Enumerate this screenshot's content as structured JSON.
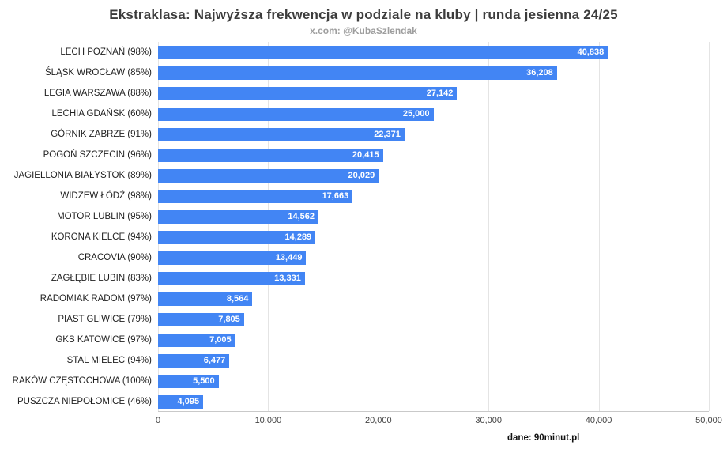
{
  "chart_data": {
    "type": "bar",
    "orientation": "horizontal",
    "title": "Ekstraklasa: Najwyższa frekwencja w podziale na kluby | runda jesienna 24/25",
    "subtitle": "x.com: @KubaSzlendak",
    "source": "dane: 90minut.pl",
    "categories": [
      "LECH POZNAŃ (98%)",
      "ŚLĄSK WROCŁAW (85%)",
      "LEGIA WARSZAWA (88%)",
      "LECHIA GDAŃSK (60%)",
      "GÓRNIK ZABRZE (91%)",
      "POGOŃ SZCZECIN (96%)",
      "JAGIELLONIA BIAŁYSTOK (89%)",
      "WIDZEW ŁÓDŹ (98%)",
      "MOTOR LUBLIN (95%)",
      "KORONA KIELCE (94%)",
      "CRACOVIA (90%)",
      "ZAGŁĘBIE LUBIN (83%)",
      "RADOMIAK RADOM (97%)",
      "PIAST GLIWICE (79%)",
      "GKS KATOWICE (97%)",
      "STAL MIELEC (94%)",
      "RAKÓW CZĘSTOCHOWA (100%)",
      "PUSZCZA NIEPOŁOMICE (46%)"
    ],
    "values": [
      40838,
      36208,
      27142,
      25000,
      22371,
      20415,
      20029,
      17663,
      14562,
      14289,
      13449,
      13331,
      8564,
      7805,
      7005,
      6477,
      5500,
      4095
    ],
    "value_labels": [
      "40,838",
      "36,208",
      "27,142",
      "25,000",
      "22,371",
      "20,415",
      "20,029",
      "17,663",
      "14,562",
      "14,289",
      "13,449",
      "13,331",
      "8,564",
      "7,805",
      "7,005",
      "6,477",
      "5,500",
      "4,095"
    ],
    "xlim": [
      0,
      50000
    ],
    "x_ticks": [
      "0",
      "10,000",
      "20,000",
      "30,000",
      "40,000",
      "50,000"
    ],
    "bar_color": "#4285f4",
    "grid": true,
    "legend": "none"
  }
}
